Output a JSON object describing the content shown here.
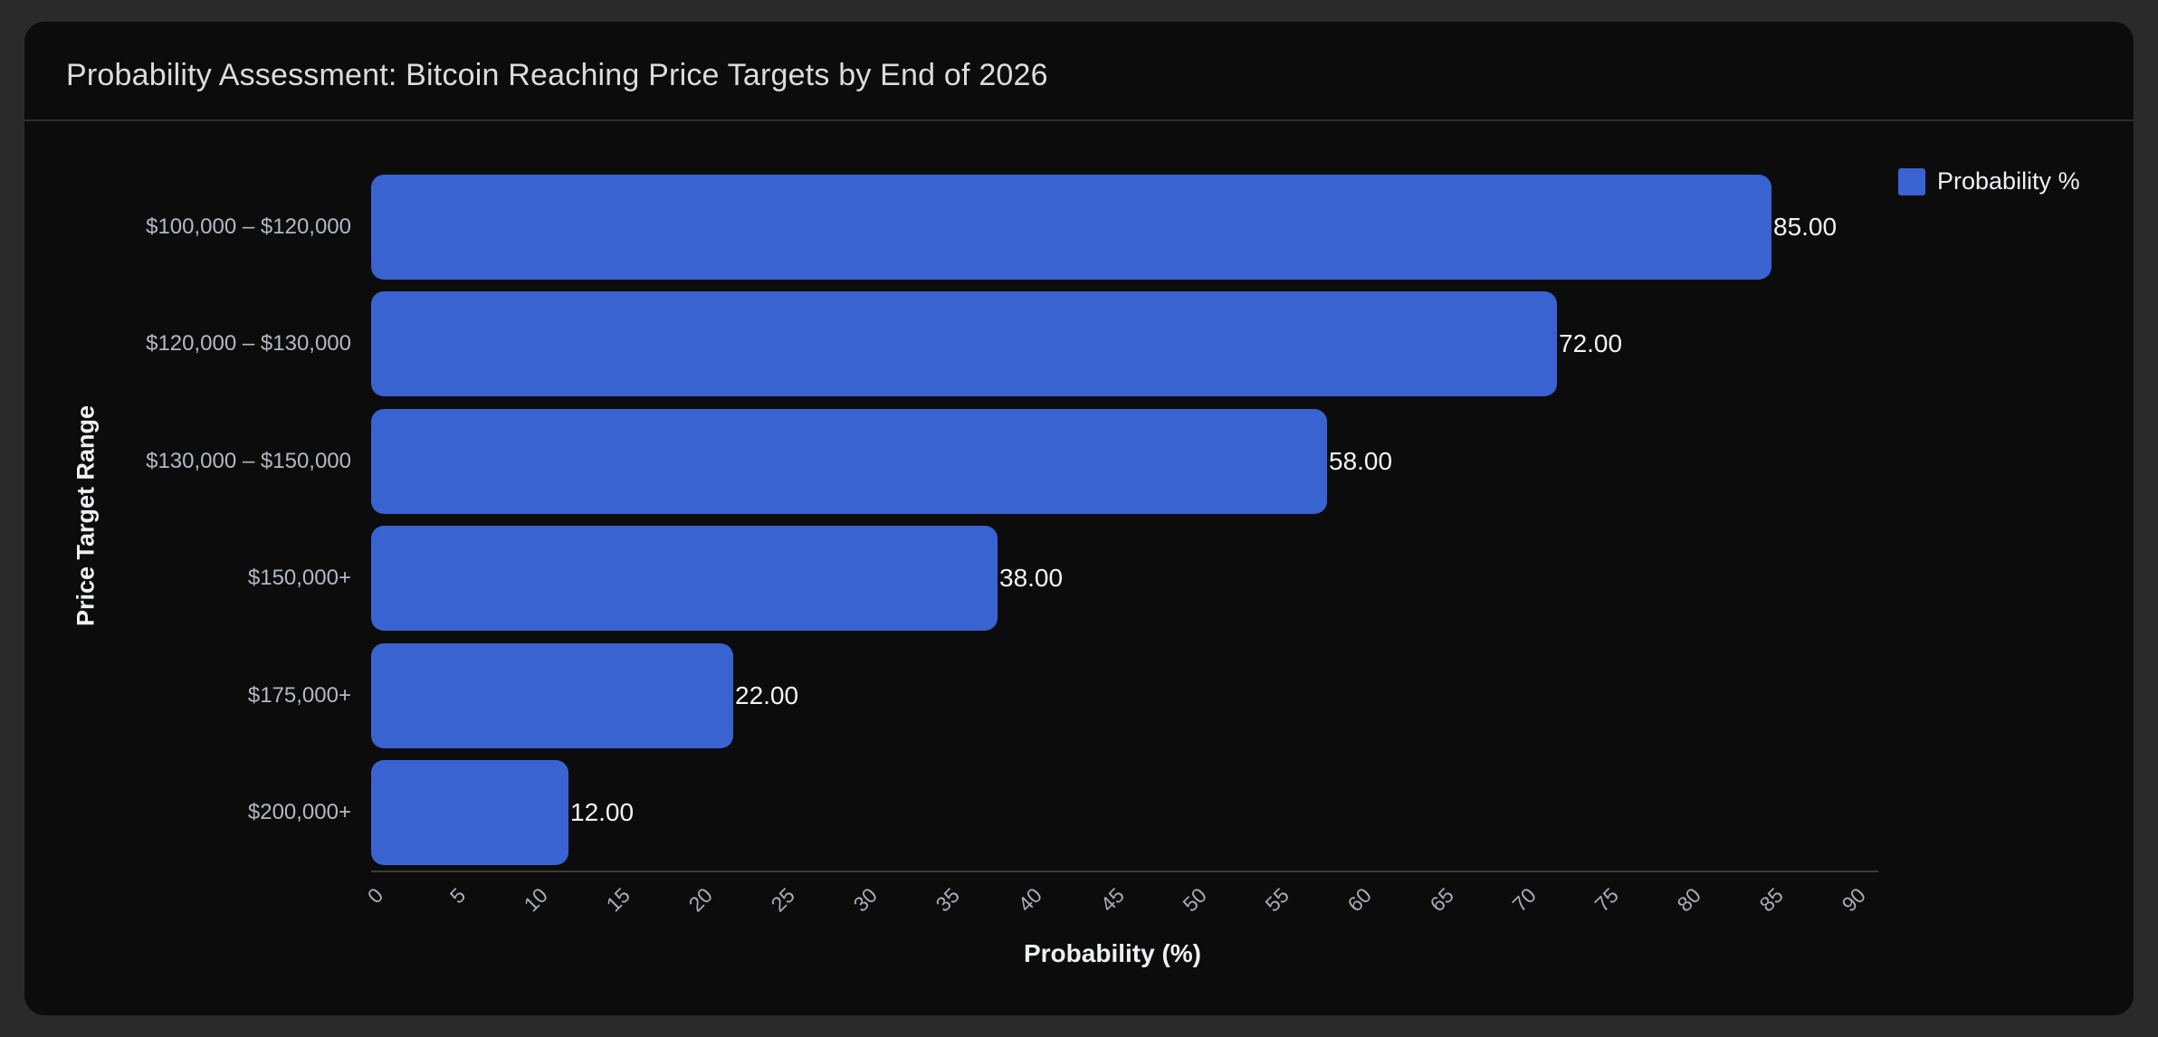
{
  "card": {
    "title": "Probability Assessment: Bitcoin Reaching Price Targets by End of 2026"
  },
  "chart_data": {
    "type": "bar",
    "orientation": "horizontal",
    "title": "Probability Assessment: Bitcoin Reaching Price Targets by End of 2026",
    "categories": [
      "$100,000 – $120,000",
      "$120,000 – $130,000",
      "$130,000 – $150,000",
      "$150,000+",
      "$175,000+",
      "$200,000+"
    ],
    "values": [
      85,
      72,
      58,
      38,
      22,
      12
    ],
    "value_labels": [
      "85.00",
      "72.00",
      "58.00",
      "38.00",
      "22.00",
      "12.00"
    ],
    "series_name": "Probability %",
    "xlabel": "Probability (%)",
    "ylabel": "Price Target Range",
    "xlim": [
      0,
      90
    ],
    "x_ticks": [
      0,
      5,
      10,
      15,
      20,
      25,
      30,
      35,
      40,
      45,
      50,
      55,
      60,
      65,
      70,
      75,
      80,
      85,
      90
    ],
    "grid": false,
    "legend_position": "top-right",
    "bar_color": "#3a63d2"
  },
  "colors": {
    "page_background": "#2a2a2a",
    "card_background": "#0c0c0c",
    "bar": "#3a63d2",
    "value_text": "#f2f3f4",
    "category_text": "#b4b9bf",
    "tick_text": "#a9aeb4"
  }
}
